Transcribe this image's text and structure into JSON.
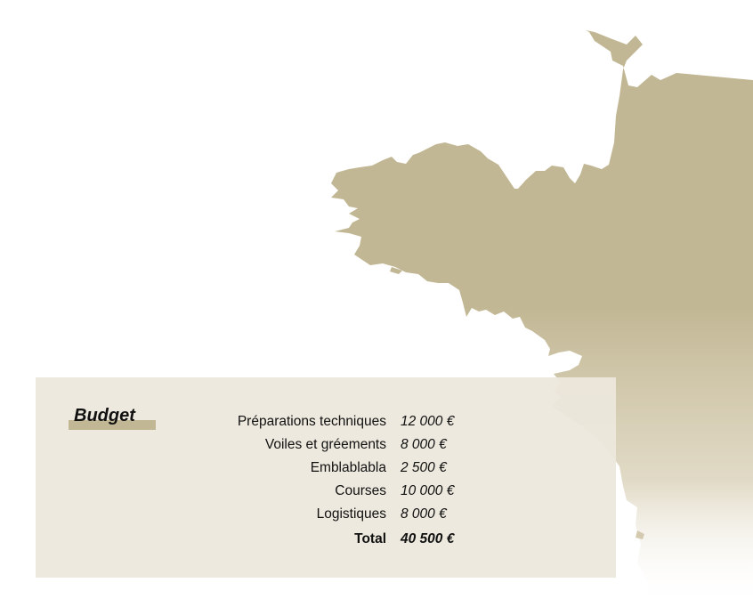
{
  "budget": {
    "title": "Budget",
    "items": [
      {
        "label": "Préparations techniques",
        "value": "12 000 €"
      },
      {
        "label": "Voiles et  gréements",
        "value": "8 000 €"
      },
      {
        "label": "Emblablabla",
        "value": "2 500 €"
      },
      {
        "label": "Courses",
        "value": "10 000 €"
      },
      {
        "label": "Logistiques",
        "value": "8 000 €"
      }
    ],
    "total": {
      "label": "Total",
      "value": "40 500 €"
    }
  },
  "colors": {
    "map_fill": "#c2b794",
    "panel_background": "#ece8dc",
    "title_highlight": "#c2b794",
    "text": "#111111"
  }
}
